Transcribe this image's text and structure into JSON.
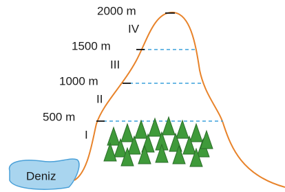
{
  "altitudes": [
    "2000 m",
    "1500 m",
    "1000 m",
    "500 m"
  ],
  "zones": [
    "IV",
    "III",
    "II",
    "I"
  ],
  "sea": "Deniz"
}
